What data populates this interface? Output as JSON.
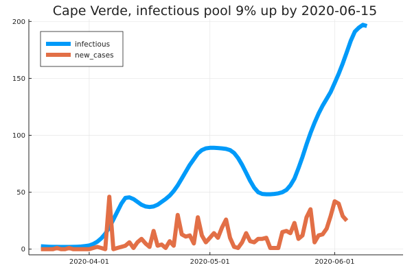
{
  "chart_data": {
    "type": "line",
    "title": "Cape Verde, infectious pool 9% up by 2020-06-15",
    "xlabel": "",
    "ylabel": "",
    "x_start": "2020-03-20",
    "x_end": "2020-06-15",
    "xlim": [
      "2020-03-17",
      "2020-06-18"
    ],
    "ylim": [
      -5,
      202
    ],
    "x_ticks": [
      "2020-04-01",
      "2020-05-01",
      "2020-06-01"
    ],
    "y_ticks": [
      0,
      50,
      100,
      150,
      200
    ],
    "grid": true,
    "legend_position": "top-left",
    "series": [
      {
        "name": "infectious",
        "color": "#009af9",
        "values": [
          2.5,
          2.3,
          2.1,
          2.0,
          2.0,
          1.9,
          1.9,
          1.9,
          2.0,
          2.1,
          2.3,
          2.7,
          3.2,
          4.5,
          6.5,
          9.5,
          13.5,
          19,
          26,
          33,
          40,
          45,
          45.5,
          44,
          41.5,
          39,
          37.5,
          37,
          37.5,
          39,
          41.5,
          44,
          47,
          51,
          56,
          62,
          68,
          74,
          79,
          84,
          87,
          88.5,
          89,
          89,
          88.8,
          88.5,
          88,
          87,
          84.5,
          80,
          74,
          67,
          60,
          54,
          50,
          48.5,
          48.2,
          48.2,
          48.5,
          49,
          50,
          52,
          56,
          62,
          71,
          81,
          92,
          102,
          111,
          119,
          126,
          132,
          138,
          146,
          154,
          163,
          173,
          183,
          191,
          194.5,
          197,
          196
        ]
      },
      {
        "name": "new_cases",
        "color": "#e26f46",
        "values": [
          0,
          0,
          0,
          0,
          1,
          0,
          0,
          1,
          0,
          0,
          0,
          0,
          0,
          1,
          2,
          1,
          0,
          46,
          0,
          1,
          2,
          3,
          6,
          1,
          6,
          9,
          5,
          2,
          16,
          3,
          4,
          1,
          7,
          3,
          30,
          13,
          11,
          12,
          5,
          28,
          12,
          6,
          10,
          14,
          10,
          19,
          26,
          10,
          2,
          1,
          6,
          14,
          7,
          6,
          9,
          9,
          10,
          1,
          1,
          1,
          15,
          16,
          14,
          23,
          9,
          12,
          28,
          35,
          6,
          12,
          13,
          18,
          29,
          42,
          40,
          29,
          25
        ],
        "x_offset": 0
      }
    ]
  }
}
